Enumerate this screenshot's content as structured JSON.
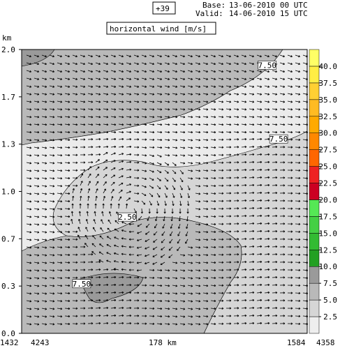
{
  "header": {
    "forecast_hour": "+39",
    "base_label": "Base:",
    "base_value": "13-06-2010  00 UTC",
    "valid_label": "Valid:",
    "valid_value": "14-06-2010  15 UTC",
    "field_title": "horizontal wind [m/s]"
  },
  "colors": {
    "background": "#ffffff",
    "level_light": "#d6d6d6",
    "level_mid": "#b9b9b9",
    "level_dark": "#9a9a9a",
    "arrow": "#000000"
  },
  "chart_data": {
    "type": "contour-quiver",
    "title": "horizontal wind [m/s]",
    "ylabel": "km",
    "ylim": [
      0.0,
      2.0
    ],
    "y_ticks": [
      "0.0",
      "0.3",
      "0.7",
      "1.0",
      "1.3",
      "1.7",
      "2.0"
    ],
    "x_labels": {
      "left_outer": "1432",
      "left_inner": "4243",
      "center": "178 km",
      "right_inner": "1584",
      "right_outer": "4358"
    },
    "colorbar": {
      "levels": [
        "2.5",
        "5.0",
        "7.5",
        "10.0",
        "12.5",
        "15.0",
        "17.5",
        "20.0",
        "22.5",
        "25.0",
        "27.5",
        "30.0",
        "32.5",
        "35.0",
        "37.5",
        "40.0"
      ],
      "colors": [
        "#eeeeee",
        "#d6d6d6",
        "#b9b9b9",
        "#9a9a9a",
        "#22a022",
        "#33bb33",
        "#44d044",
        "#55e855",
        "#cc0022",
        "#ee2222",
        "#ff6600",
        "#ff8800",
        "#ffaa00",
        "#ffbb22",
        "#ffd033",
        "#ffee44"
      ],
      "top_color": "#ffff66"
    },
    "contour_labels": [
      {
        "text": "7.50",
        "x_frac": 0.86,
        "y_km": 1.89
      },
      {
        "text": "7.50",
        "x_frac": 0.9,
        "y_km": 1.37
      },
      {
        "text": "2.50",
        "x_frac": 0.37,
        "y_km": 0.82
      },
      {
        "text": "7.50",
        "x_frac": 0.21,
        "y_km": 0.35
      }
    ]
  }
}
